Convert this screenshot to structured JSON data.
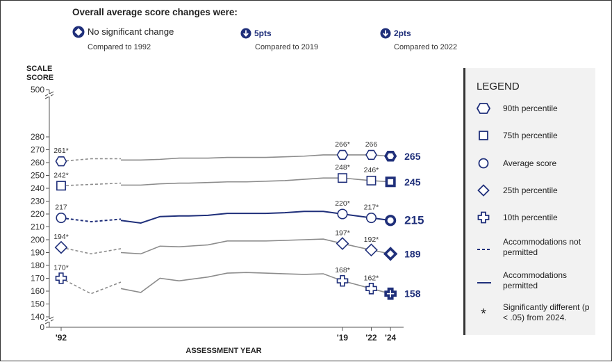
{
  "header": {
    "title": "Overall average score changes were:",
    "items": [
      {
        "main": "No significant change",
        "pts": "",
        "sub": "Compared to 1992"
      },
      {
        "main": "",
        "pts": "5pts",
        "sub": "Compared to 2019"
      },
      {
        "main": "",
        "pts": "2pts",
        "sub": "Compared to 2022"
      }
    ]
  },
  "legend": {
    "title": "LEGEND",
    "items": [
      {
        "icon": "hexagon-icon",
        "label": "90th percentile"
      },
      {
        "icon": "square-icon",
        "label": "75th percentile"
      },
      {
        "icon": "circle-icon",
        "label": "Average score"
      },
      {
        "icon": "diamond-icon",
        "label": "25th percentile"
      },
      {
        "icon": "plus-icon",
        "label": "10th percentile"
      },
      {
        "icon": "dashed-line-icon",
        "label": "Accommodations not permitted"
      },
      {
        "icon": "solid-line-icon",
        "label": "Accommodations permitted"
      },
      {
        "icon": "asterisk-icon",
        "label": "Significantly different (p < .05) from 2024."
      }
    ]
  },
  "colors": {
    "navy": "#1f2f7a",
    "gray": "#8c8c8c",
    "legend_bg": "#f2f2f2"
  },
  "chart_data": {
    "type": "line",
    "ylabel": "SCALE SCORE",
    "xlabel": "ASSESSMENT YEAR",
    "ylim": [
      140,
      280
    ],
    "y_ticks": [
      0,
      140,
      150,
      160,
      170,
      180,
      190,
      200,
      210,
      220,
      230,
      240,
      250,
      260,
      270,
      280,
      500
    ],
    "x_ticks": [
      "'92",
      "'19",
      "'22",
      "'24"
    ],
    "axis_breaks": true,
    "series": [
      {
        "name": "90th percentile",
        "marker": "hexagon",
        "final_label": "265",
        "not_permitted": [
          [
            1992,
            261
          ],
          [
            1994,
            263
          ],
          [
            1996,
            263
          ]
        ],
        "permitted": [
          [
            1996,
            262
          ],
          [
            1998,
            262
          ],
          [
            2000,
            262.5
          ],
          [
            2002,
            263.5
          ],
          [
            2003,
            263.5
          ],
          [
            2005,
            263.5
          ],
          [
            2007,
            264
          ],
          [
            2009,
            264
          ],
          [
            2011,
            264
          ],
          [
            2013,
            264.5
          ],
          [
            2015,
            265
          ],
          [
            2017,
            266
          ],
          [
            2019,
            266
          ],
          [
            2022,
            266
          ],
          [
            2024,
            265
          ]
        ],
        "labeled": [
          {
            "x": 1992,
            "y": 261,
            "text": "261*"
          },
          {
            "x": 2019,
            "y": 266,
            "text": "266*"
          },
          {
            "x": 2022,
            "y": 266,
            "text": "266"
          }
        ]
      },
      {
        "name": "75th percentile",
        "marker": "square",
        "final_label": "245",
        "not_permitted": [
          [
            1992,
            242
          ],
          [
            1994,
            243
          ],
          [
            1996,
            244
          ]
        ],
        "permitted": [
          [
            1996,
            242.5
          ],
          [
            1998,
            242.5
          ],
          [
            2000,
            243.5
          ],
          [
            2002,
            244
          ],
          [
            2003,
            244
          ],
          [
            2005,
            244.5
          ],
          [
            2007,
            245
          ],
          [
            2009,
            245
          ],
          [
            2011,
            245.5
          ],
          [
            2013,
            246
          ],
          [
            2015,
            247
          ],
          [
            2017,
            248
          ],
          [
            2019,
            248
          ],
          [
            2022,
            246
          ],
          [
            2024,
            245
          ]
        ],
        "labeled": [
          {
            "x": 1992,
            "y": 242,
            "text": "242*"
          },
          {
            "x": 2019,
            "y": 248,
            "text": "248*"
          },
          {
            "x": 2022,
            "y": 246,
            "text": "246*"
          }
        ]
      },
      {
        "name": "Average score",
        "marker": "circle",
        "final_label": "215",
        "not_permitted": [
          [
            1992,
            217
          ],
          [
            1994,
            214
          ],
          [
            1996,
            216
          ]
        ],
        "permitted": [
          [
            1996,
            215
          ],
          [
            1998,
            213
          ],
          [
            2000,
            218
          ],
          [
            2002,
            218.5
          ],
          [
            2003,
            218.5
          ],
          [
            2005,
            219
          ],
          [
            2007,
            220.5
          ],
          [
            2009,
            220.5
          ],
          [
            2011,
            220.5
          ],
          [
            2013,
            221
          ],
          [
            2015,
            222
          ],
          [
            2017,
            222
          ],
          [
            2019,
            220
          ],
          [
            2022,
            217
          ],
          [
            2024,
            215
          ]
        ],
        "labeled": [
          {
            "x": 1992,
            "y": 217,
            "text": "217"
          },
          {
            "x": 2019,
            "y": 220,
            "text": "220*"
          },
          {
            "x": 2022,
            "y": 217,
            "text": "217*"
          }
        ]
      },
      {
        "name": "25th percentile",
        "marker": "diamond",
        "final_label": "189",
        "not_permitted": [
          [
            1992,
            194
          ],
          [
            1994,
            189
          ],
          [
            1996,
            193
          ]
        ],
        "permitted": [
          [
            1996,
            190
          ],
          [
            1998,
            189
          ],
          [
            2000,
            195
          ],
          [
            2002,
            194.5
          ],
          [
            2003,
            195
          ],
          [
            2005,
            196
          ],
          [
            2007,
            199
          ],
          [
            2009,
            199
          ],
          [
            2011,
            199
          ],
          [
            2013,
            199.5
          ],
          [
            2015,
            200
          ],
          [
            2017,
            200.5
          ],
          [
            2019,
            197
          ],
          [
            2022,
            192
          ],
          [
            2024,
            189
          ]
        ],
        "labeled": [
          {
            "x": 1992,
            "y": 194,
            "text": "194*"
          },
          {
            "x": 2019,
            "y": 197,
            "text": "197*"
          },
          {
            "x": 2022,
            "y": 192,
            "text": "192*"
          }
        ]
      },
      {
        "name": "10th percentile",
        "marker": "plus",
        "final_label": "158",
        "not_permitted": [
          [
            1992,
            170
          ],
          [
            1994,
            158
          ],
          [
            1996,
            167
          ]
        ],
        "permitted": [
          [
            1996,
            162
          ],
          [
            1998,
            159
          ],
          [
            2000,
            170
          ],
          [
            2002,
            168
          ],
          [
            2003,
            169
          ],
          [
            2005,
            171
          ],
          [
            2007,
            174
          ],
          [
            2009,
            174.5
          ],
          [
            2011,
            174
          ],
          [
            2013,
            173.5
          ],
          [
            2015,
            173
          ],
          [
            2017,
            173.5
          ],
          [
            2019,
            168
          ],
          [
            2022,
            162
          ],
          [
            2024,
            158
          ]
        ],
        "labeled": [
          {
            "x": 1992,
            "y": 170,
            "text": "170*"
          },
          {
            "x": 2019,
            "y": 168,
            "text": "168*"
          },
          {
            "x": 2022,
            "y": 162,
            "text": "162*"
          }
        ]
      }
    ]
  }
}
